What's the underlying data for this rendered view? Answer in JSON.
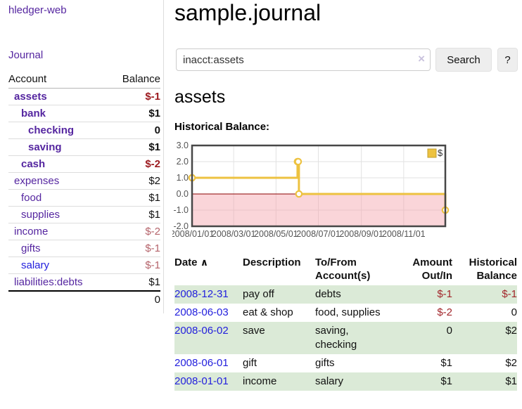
{
  "app": {
    "brand": "hledger-web",
    "nav": {
      "journal": "Journal"
    }
  },
  "sidebar": {
    "headers": {
      "account": "Account",
      "balance": "Balance"
    },
    "accounts": [
      {
        "name": "assets",
        "balance": "$-1",
        "depth": 1,
        "in_query": true
      },
      {
        "name": "bank",
        "balance": "$1",
        "depth": 2,
        "in_query": true
      },
      {
        "name": "checking",
        "balance": "0",
        "depth": 3,
        "in_query": true
      },
      {
        "name": "saving",
        "balance": "$1",
        "depth": 3,
        "in_query": true
      },
      {
        "name": "cash",
        "balance": "$-2",
        "depth": 2,
        "in_query": true
      },
      {
        "name": "expenses",
        "balance": "$2",
        "depth": 1,
        "in_query": false
      },
      {
        "name": "food",
        "balance": "$1",
        "depth": 2,
        "in_query": false
      },
      {
        "name": "supplies",
        "balance": "$1",
        "depth": 2,
        "in_query": false
      },
      {
        "name": "income",
        "balance": "$-2",
        "depth": 1,
        "in_query": false
      },
      {
        "name": "gifts",
        "balance": "$-1",
        "depth": 2,
        "in_query": false
      },
      {
        "name": "salary",
        "balance": "$-1",
        "depth": 2,
        "in_query": false,
        "link_color": "blue"
      },
      {
        "name": "liabilities:debts",
        "balance": "$1",
        "depth": 1,
        "in_query": false
      }
    ],
    "total": "0"
  },
  "main": {
    "title": "sample.journal",
    "search": {
      "value": "inacct:assets",
      "clear_icon": "×",
      "button": "Search",
      "help_button": "?"
    },
    "account_heading": "assets",
    "chart_label": "Historical Balance:"
  },
  "chart_data": {
    "type": "line",
    "step": true,
    "title": "Historical Balance",
    "series": [
      {
        "name": "$",
        "color": "#edc240",
        "points": [
          [
            "2008-01-01",
            1
          ],
          [
            "2008-06-01",
            2
          ],
          [
            "2008-06-02",
            2
          ],
          [
            "2008-06-03",
            0
          ],
          [
            "2008-12-31",
            -1
          ]
        ]
      }
    ],
    "xlim": [
      "2008-01-01",
      "2008-12-31"
    ],
    "ylim": [
      -2,
      3
    ],
    "x_ticks": [
      [
        "2008-01-01",
        "2008/01/01"
      ],
      [
        "2008-03-01",
        "2008/03/01"
      ],
      [
        "2008-05-01",
        "2008/05/01"
      ],
      [
        "2008-07-01",
        "2008/07/01"
      ],
      [
        "2008-09-01",
        "2008/09/01"
      ],
      [
        "2008-11-01",
        "2008/11/01"
      ]
    ],
    "y_ticks": [
      [
        -2,
        "-2.0"
      ],
      [
        -1,
        "-1.0"
      ],
      [
        0,
        "0.0"
      ],
      [
        1,
        "1.0"
      ],
      [
        2,
        "2.0"
      ],
      [
        3,
        "3.0"
      ]
    ],
    "legend": {
      "label": "$",
      "position": "top-right"
    },
    "grid": true,
    "negative_region_shaded": true,
    "colors": {
      "line": "#edc240",
      "zero_line": "#8b0000",
      "negative_fill": "#f9dcdf",
      "border": "#474747",
      "grid": "#e2e2e2",
      "tick_text": "#545454"
    }
  },
  "register": {
    "headers": {
      "date": "Date",
      "sort_icon": "∧",
      "description": "Description",
      "tofrom": "To/From Account(s)",
      "amount": "Amount Out/In",
      "balance": "Historical Balance"
    },
    "rows": [
      {
        "date": "2008-12-31",
        "description": "pay off",
        "tofrom": "debts",
        "amount": "$-1",
        "balance": "$-1"
      },
      {
        "date": "2008-06-03",
        "description": "eat & shop",
        "tofrom": "food, supplies",
        "amount": "$-2",
        "balance": "0"
      },
      {
        "date": "2008-06-02",
        "description": "save",
        "tofrom": "saving,\nchecking",
        "amount": "0",
        "balance": "$2"
      },
      {
        "date": "2008-06-01",
        "description": "gift",
        "tofrom": "gifts",
        "amount": "$1",
        "balance": "$2"
      },
      {
        "date": "2008-01-01",
        "description": "income",
        "tofrom": "salary",
        "amount": "$1",
        "balance": "$1"
      }
    ]
  }
}
